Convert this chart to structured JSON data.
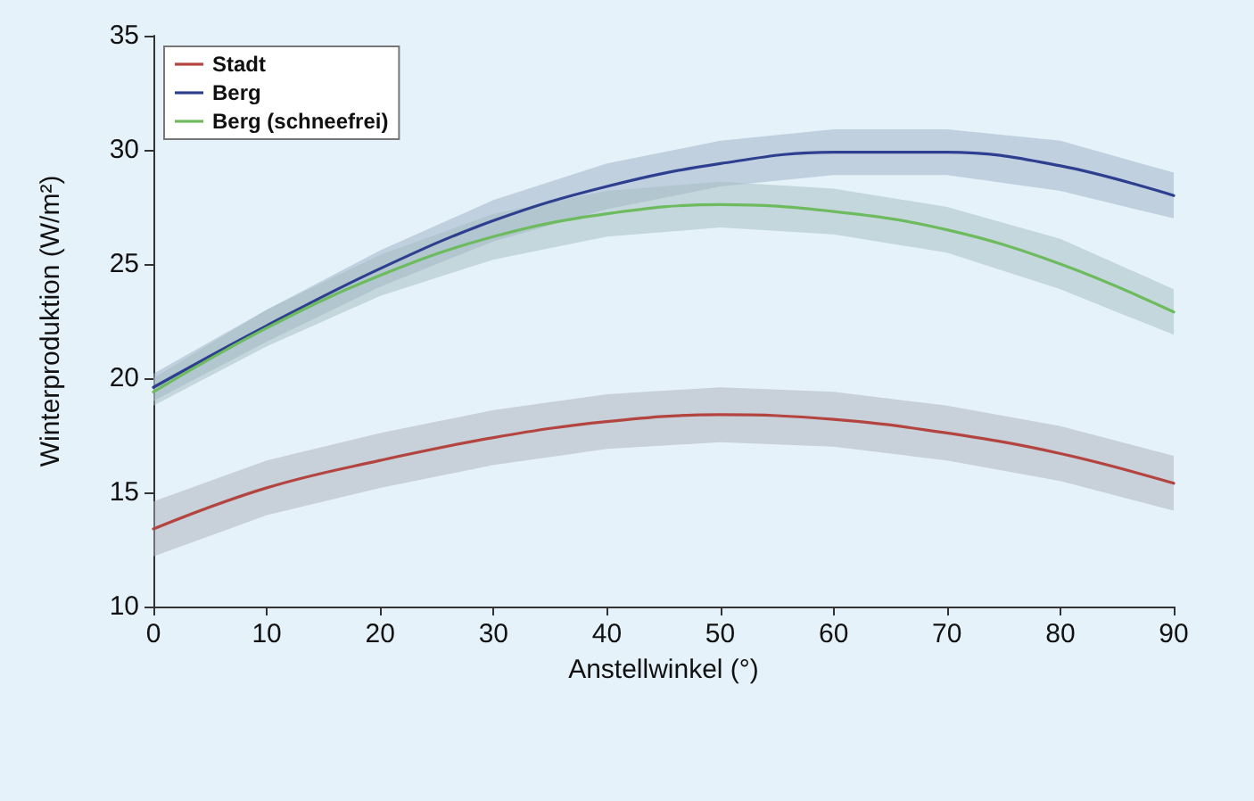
{
  "chart_data": {
    "type": "line",
    "xlabel": "Anstellwinkel (°)",
    "ylabel": "Winterproduktion (W/m²)",
    "x": [
      0,
      10,
      20,
      30,
      40,
      50,
      60,
      70,
      80,
      90
    ],
    "xlim": [
      0,
      90
    ],
    "xticks": [
      0,
      10,
      20,
      30,
      40,
      50,
      60,
      70,
      80,
      90
    ],
    "ylim": [
      10,
      35
    ],
    "yticks": [
      10,
      15,
      20,
      25,
      30,
      35
    ],
    "grid": false,
    "legend": "top left",
    "marker": "none",
    "line_style": "solid",
    "series": [
      {
        "name": "Stadt",
        "color": "#b3443f",
        "values": [
          13.4,
          15.2,
          16.4,
          17.4,
          18.1,
          18.4,
          18.2,
          17.6,
          16.7,
          15.4
        ],
        "lower": [
          12.2,
          14.0,
          15.2,
          16.2,
          16.9,
          17.2,
          17.0,
          16.4,
          15.5,
          14.2
        ],
        "upper": [
          14.6,
          16.4,
          17.6,
          18.6,
          19.3,
          19.6,
          19.4,
          18.8,
          17.9,
          16.6
        ]
      },
      {
        "name": "Berg",
        "color": "#2e3f8f",
        "values": [
          19.6,
          22.3,
          24.8,
          26.9,
          28.4,
          29.4,
          29.9,
          29.9,
          29.3,
          28.0
        ],
        "lower": [
          19.0,
          21.6,
          24.0,
          26.0,
          27.4,
          28.4,
          28.9,
          28.9,
          28.2,
          27.0
        ],
        "upper": [
          20.2,
          23.0,
          25.6,
          27.8,
          29.4,
          30.4,
          30.9,
          30.9,
          30.4,
          29.0
        ]
      },
      {
        "name": "Berg (schneefrei)",
        "color": "#6dbb5e",
        "values": [
          19.4,
          22.2,
          24.5,
          26.2,
          27.2,
          27.6,
          27.3,
          26.5,
          25.0,
          22.9
        ],
        "lower": [
          18.8,
          21.4,
          23.6,
          25.2,
          26.2,
          26.6,
          26.3,
          25.5,
          23.9,
          21.9
        ],
        "upper": [
          20.0,
          23.0,
          25.4,
          27.2,
          28.2,
          28.6,
          28.3,
          27.5,
          26.1,
          23.9
        ]
      }
    ]
  }
}
